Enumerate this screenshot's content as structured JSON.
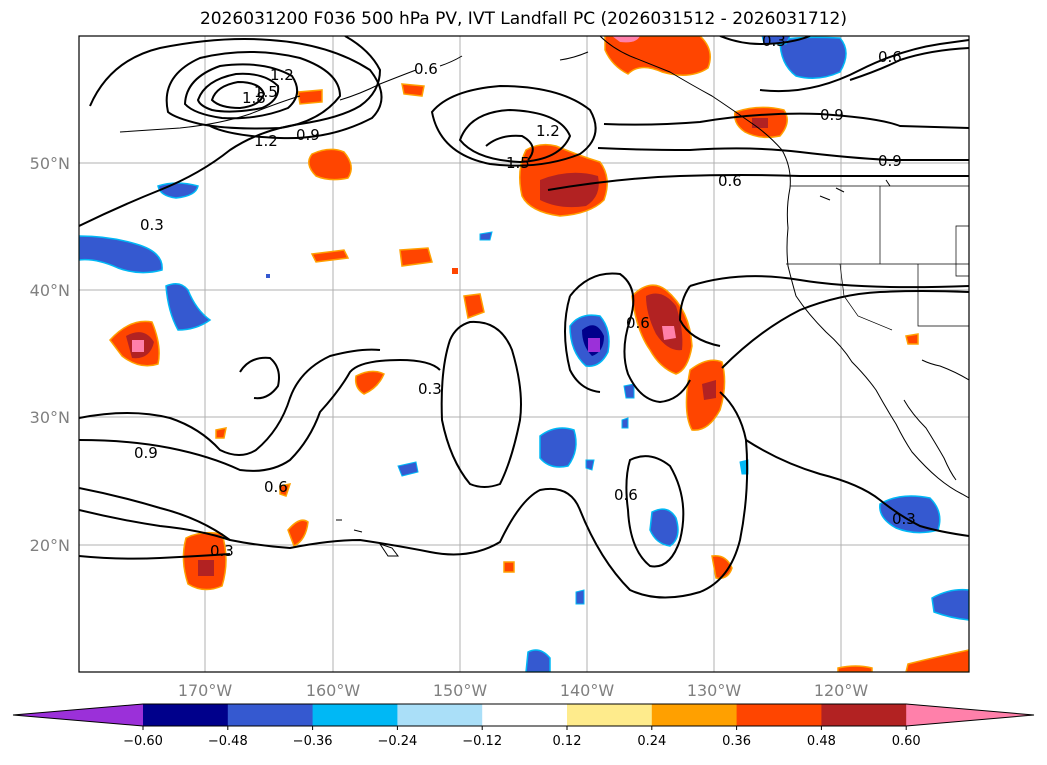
{
  "title": "2026031200 F036 500 hPa PV, IVT Landfall PC (2026031512 - 2026031712)",
  "lon_ticks": [
    "170°W",
    "160°W",
    "150°W",
    "140°W",
    "130°W",
    "120°W"
  ],
  "lat_ticks": [
    "50°N",
    "40°N",
    "30°N",
    "20°N"
  ],
  "contour_labels": [
    "1.2",
    "1.5",
    "1.8",
    "1.2",
    "0.9",
    "0.6",
    "1.2",
    "1.5",
    "0.9",
    "0.6",
    "0.9",
    "0.6",
    "0.3",
    "0.3",
    "0.9",
    "0.6",
    "0.3",
    "0.6",
    "0.3",
    "0.6",
    "0.3"
  ],
  "colorbar": {
    "ticks": [
      "−0.60",
      "−0.48",
      "−0.36",
      "−0.24",
      "−0.12",
      "0.12",
      "0.24",
      "0.36",
      "0.48",
      "0.60"
    ],
    "colors": [
      "#9b30d9",
      "#00008b",
      "#3559d0",
      "#00b8f5",
      "#aadff8",
      "#ffffff",
      "#feeb8c",
      "#ffa000",
      "#ff4500",
      "#b22222",
      "#ff80aa"
    ]
  }
}
